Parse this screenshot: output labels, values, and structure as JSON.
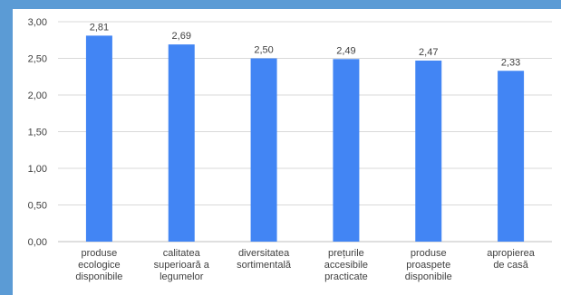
{
  "chart_data": {
    "type": "bar",
    "title": "",
    "xlabel": "",
    "ylabel": "",
    "ylim": [
      0,
      3
    ],
    "yticks": [
      "0,00",
      "0,50",
      "1,00",
      "1,50",
      "2,00",
      "2,50",
      "3,00"
    ],
    "grid": true,
    "legend": "none",
    "bar_color": "#4285f4",
    "categories": [
      [
        "produse",
        "ecologice",
        "disponibile"
      ],
      [
        "calitatea",
        "superioară a",
        "legumelor"
      ],
      [
        "diversitatea",
        "sortimentală"
      ],
      [
        "prețurile",
        "accesibile",
        "practicate"
      ],
      [
        "produse",
        "proaspete",
        "disponibile"
      ],
      [
        "apropierea",
        "de casă"
      ]
    ],
    "values": [
      2.81,
      2.69,
      2.5,
      2.49,
      2.47,
      2.33
    ],
    "value_labels": [
      "2,81",
      "2,69",
      "2,50",
      "2,49",
      "2,47",
      "2,33"
    ]
  }
}
